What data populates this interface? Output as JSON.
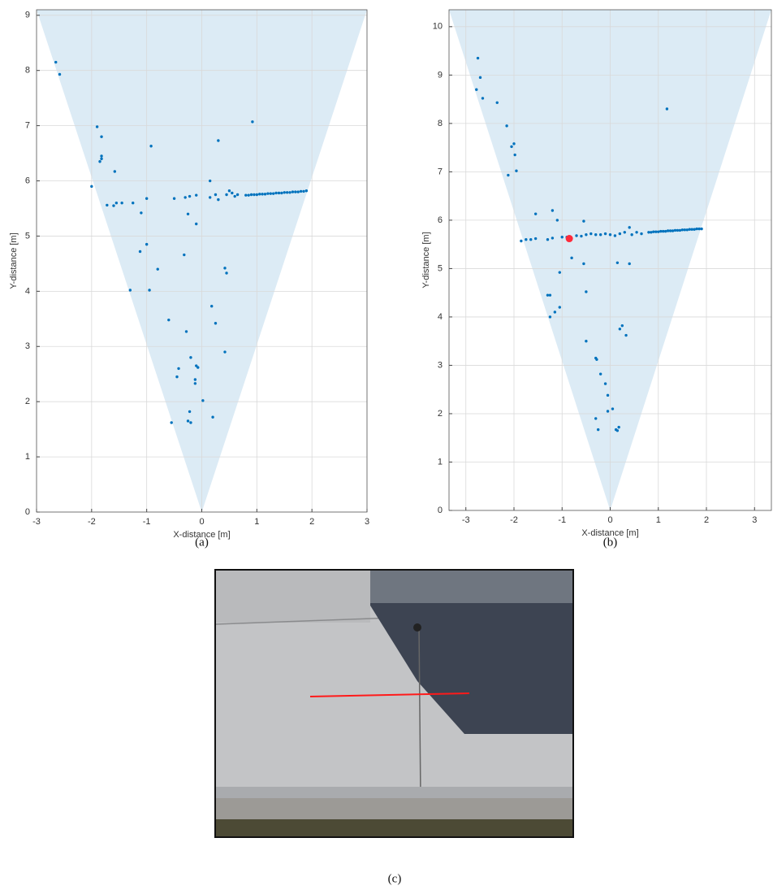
{
  "chart_data": [
    {
      "type": "scatter",
      "caption": "(a)",
      "xlabel": "X-distance [m]",
      "ylabel": "Y-distance [m]",
      "xlim": [
        -3,
        3
      ],
      "ylim": [
        0,
        9.1
      ],
      "xticks": [
        -3,
        -2,
        -1,
        0,
        1,
        2,
        3
      ],
      "yticks": [
        0,
        1,
        2,
        3,
        4,
        5,
        6,
        7,
        8,
        9
      ],
      "grid": true,
      "fov": {
        "x": [
          -3,
          0,
          3
        ],
        "y": [
          9.1,
          0,
          9.1
        ],
        "color": "#dcebf5"
      },
      "series": [
        {
          "color": "#0072bd",
          "x": [
            -2.65,
            -2.58,
            -1.9,
            -1.82,
            -1.85,
            -1.82,
            -1.82,
            -1.58,
            -2.0,
            -1.72,
            -1.6,
            -1.55,
            -1.45,
            -1.25,
            -1.1,
            -1.12,
            -1.0,
            -1.0,
            -0.92,
            -0.95,
            -1.3,
            -0.8,
            -0.6,
            -0.5,
            -0.3,
            -0.22,
            -0.1,
            -0.25,
            -0.1,
            -0.32,
            -0.28,
            -0.2,
            -0.42,
            -0.45,
            -0.12,
            -0.12,
            -0.1,
            -0.07,
            -0.55,
            -0.22,
            -0.25,
            -0.2,
            0.02,
            0.2,
            0.18,
            0.25,
            0.42,
            0.42,
            0.45,
            0.15,
            0.3,
            0.15,
            0.25,
            0.3,
            0.45,
            0.5,
            0.55,
            0.6,
            0.65,
            0.92,
            0.8,
            0.85,
            0.9,
            0.95,
            1.0,
            1.05,
            1.1,
            1.15,
            1.2,
            1.25,
            1.3,
            1.35,
            1.4,
            1.45,
            1.5,
            1.55,
            1.6,
            1.65,
            1.7,
            1.75,
            1.8,
            1.85,
            1.9
          ],
          "y": [
            8.15,
            7.93,
            6.98,
            6.8,
            6.35,
            6.45,
            6.4,
            6.17,
            5.9,
            5.56,
            5.55,
            5.6,
            5.6,
            5.6,
            5.42,
            4.72,
            4.85,
            5.68,
            6.63,
            4.02,
            4.02,
            4.4,
            3.48,
            5.68,
            5.7,
            5.72,
            5.74,
            5.4,
            5.22,
            4.66,
            3.27,
            2.8,
            2.6,
            2.45,
            2.4,
            2.33,
            2.65,
            2.62,
            1.62,
            1.82,
            1.65,
            1.62,
            2.02,
            1.72,
            3.73,
            3.42,
            2.9,
            4.42,
            4.33,
            6.0,
            6.73,
            5.7,
            5.75,
            5.66,
            5.75,
            5.82,
            5.78,
            5.72,
            5.75,
            7.07,
            5.74,
            5.74,
            5.75,
            5.75,
            5.75,
            5.76,
            5.76,
            5.76,
            5.77,
            5.77,
            5.77,
            5.78,
            5.78,
            5.78,
            5.79,
            5.79,
            5.79,
            5.8,
            5.8,
            5.8,
            5.81,
            5.81,
            5.82
          ]
        }
      ]
    },
    {
      "type": "scatter",
      "caption": "(b)",
      "xlabel": "X-distance [m]",
      "ylabel": "Y-distance [m]",
      "xlim": [
        -3.35,
        3.35
      ],
      "ylim": [
        0,
        10.35
      ],
      "xticks": [
        -3,
        -2,
        -1,
        0,
        1,
        2,
        3
      ],
      "yticks": [
        0,
        1,
        2,
        3,
        4,
        5,
        6,
        7,
        8,
        9,
        10
      ],
      "grid": true,
      "fov": {
        "x": [
          -3.35,
          0,
          3.35
        ],
        "y": [
          10.35,
          0,
          10.35
        ],
        "color": "#dcebf5"
      },
      "series": [
        {
          "color": "#0072bd",
          "x": [
            -2.75,
            -2.7,
            -2.78,
            -2.65,
            -2.35,
            -2.15,
            -2.0,
            -2.05,
            -1.98,
            -1.95,
            -2.12,
            1.18,
            -1.55,
            -1.2,
            -1.1,
            -0.55,
            -1.85,
            -1.75,
            -1.65,
            -1.55,
            -1.3,
            -1.2,
            -1.0,
            -0.9,
            -0.7,
            -0.6,
            -0.5,
            -0.4,
            -0.3,
            -0.2,
            -0.1,
            0.0,
            0.1,
            0.2,
            0.3,
            0.4,
            0.45,
            0.55,
            0.65,
            -0.8,
            -0.55,
            0.15,
            0.4,
            -1.05,
            -0.5,
            -1.3,
            -1.25,
            -1.15,
            -1.25,
            -1.05,
            -0.5,
            0.2,
            0.25,
            0.33,
            -0.3,
            -0.28,
            -0.2,
            -0.1,
            -0.05,
            -0.3,
            -0.25,
            -0.05,
            0.05,
            0.12,
            0.18,
            0.15,
            0.8,
            0.85,
            0.9,
            0.95,
            1.0,
            1.05,
            1.1,
            1.15,
            1.2,
            1.25,
            1.3,
            1.35,
            1.4,
            1.45,
            1.5,
            1.55,
            1.6,
            1.65,
            1.7,
            1.75,
            1.8,
            1.85,
            1.9
          ],
          "y": [
            9.35,
            8.95,
            8.7,
            8.52,
            8.43,
            7.95,
            7.58,
            7.52,
            7.35,
            7.02,
            6.93,
            8.3,
            6.13,
            6.2,
            6.0,
            5.98,
            5.57,
            5.6,
            5.6,
            5.62,
            5.6,
            5.63,
            5.65,
            5.65,
            5.68,
            5.67,
            5.7,
            5.72,
            5.7,
            5.7,
            5.72,
            5.7,
            5.68,
            5.72,
            5.75,
            5.85,
            5.7,
            5.75,
            5.72,
            5.22,
            5.1,
            5.12,
            5.1,
            4.92,
            4.52,
            4.45,
            4.45,
            4.1,
            4.0,
            4.2,
            3.5,
            3.75,
            3.82,
            3.62,
            3.15,
            3.12,
            2.82,
            2.62,
            2.38,
            1.9,
            1.67,
            2.05,
            2.1,
            1.67,
            1.72,
            1.65,
            5.75,
            5.75,
            5.76,
            5.76,
            5.76,
            5.77,
            5.77,
            5.77,
            5.78,
            5.78,
            5.78,
            5.79,
            5.79,
            5.79,
            5.8,
            5.8,
            5.8,
            5.81,
            5.81,
            5.81,
            5.82,
            5.82,
            5.82
          ]
        },
        {
          "color": "#ff2a3a",
          "x": [
            -0.85
          ],
          "y": [
            5.62
          ],
          "size": 9
        }
      ]
    }
  ],
  "photo": {
    "caption": "(c)"
  }
}
